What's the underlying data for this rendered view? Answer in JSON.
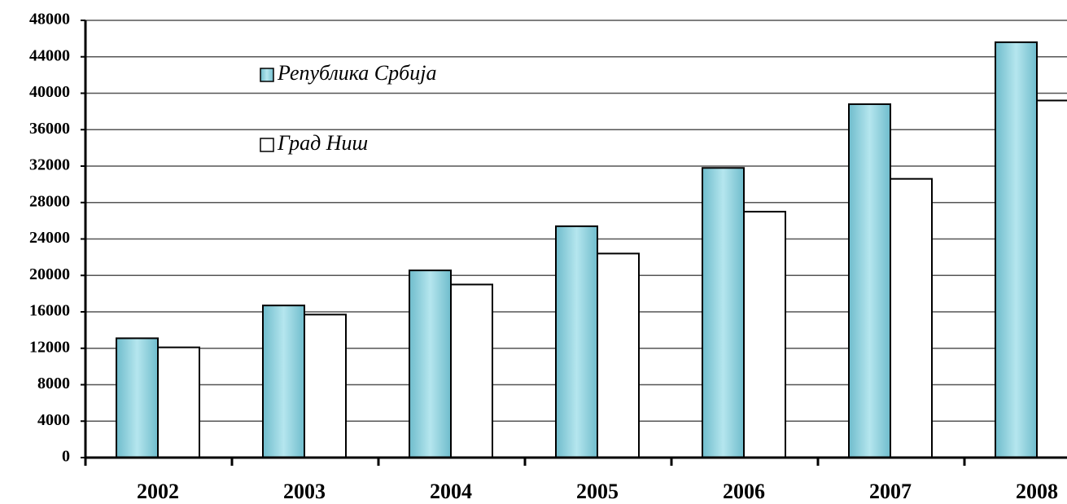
{
  "chart_data": {
    "type": "bar",
    "categories": [
      "2002",
      "2003",
      "2004",
      "2005",
      "2006",
      "2007",
      "2008"
    ],
    "series": [
      {
        "name": "Република Србија",
        "color": "#8fd3df",
        "values": [
          13100,
          16700,
          20550,
          25400,
          31800,
          38800,
          45600
        ]
      },
      {
        "name": "Град Ниш",
        "color": "#ffffff",
        "values": [
          12100,
          15700,
          19000,
          22400,
          27000,
          30600,
          39200
        ]
      }
    ],
    "ylim": [
      0,
      48000
    ],
    "yticks": [
      0,
      4000,
      8000,
      12000,
      16000,
      20000,
      24000,
      28000,
      32000,
      36000,
      40000,
      44000,
      48000
    ],
    "grid": true
  }
}
